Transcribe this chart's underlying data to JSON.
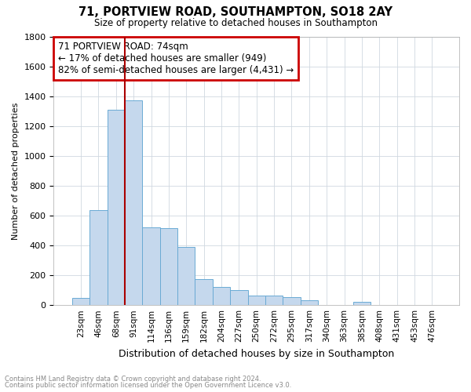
{
  "title": "71, PORTVIEW ROAD, SOUTHAMPTON, SO18 2AY",
  "subtitle": "Size of property relative to detached houses in Southampton",
  "xlabel": "Distribution of detached houses by size in Southampton",
  "ylabel": "Number of detached properties",
  "footnote1": "Contains HM Land Registry data © Crown copyright and database right 2024.",
  "footnote2": "Contains public sector information licensed under the Open Government Licence v3.0.",
  "annotation_line1": "71 PORTVIEW ROAD: 74sqm",
  "annotation_line2": "← 17% of detached houses are smaller (949)",
  "annotation_line3": "82% of semi-detached houses are larger (4,431) →",
  "bar_color": "#c5d8ed",
  "bar_edge_color": "#6aaad4",
  "vline_color": "#aa0000",
  "annotation_box_color": "#cc0000",
  "categories": [
    "23sqm",
    "46sqm",
    "68sqm",
    "91sqm",
    "114sqm",
    "136sqm",
    "159sqm",
    "182sqm",
    "204sqm",
    "227sqm",
    "250sqm",
    "272sqm",
    "295sqm",
    "317sqm",
    "340sqm",
    "363sqm",
    "385sqm",
    "408sqm",
    "431sqm",
    "453sqm",
    "476sqm"
  ],
  "values": [
    50,
    635,
    1310,
    1370,
    520,
    515,
    390,
    175,
    120,
    100,
    65,
    65,
    55,
    30,
    0,
    0,
    20,
    0,
    0,
    0,
    0
  ],
  "ylim": [
    0,
    1800
  ],
  "yticks": [
    0,
    200,
    400,
    600,
    800,
    1000,
    1200,
    1400,
    1600,
    1800
  ],
  "vline_position": 2.5,
  "background_color": "#ffffff",
  "grid_color": "#d0d8e0"
}
